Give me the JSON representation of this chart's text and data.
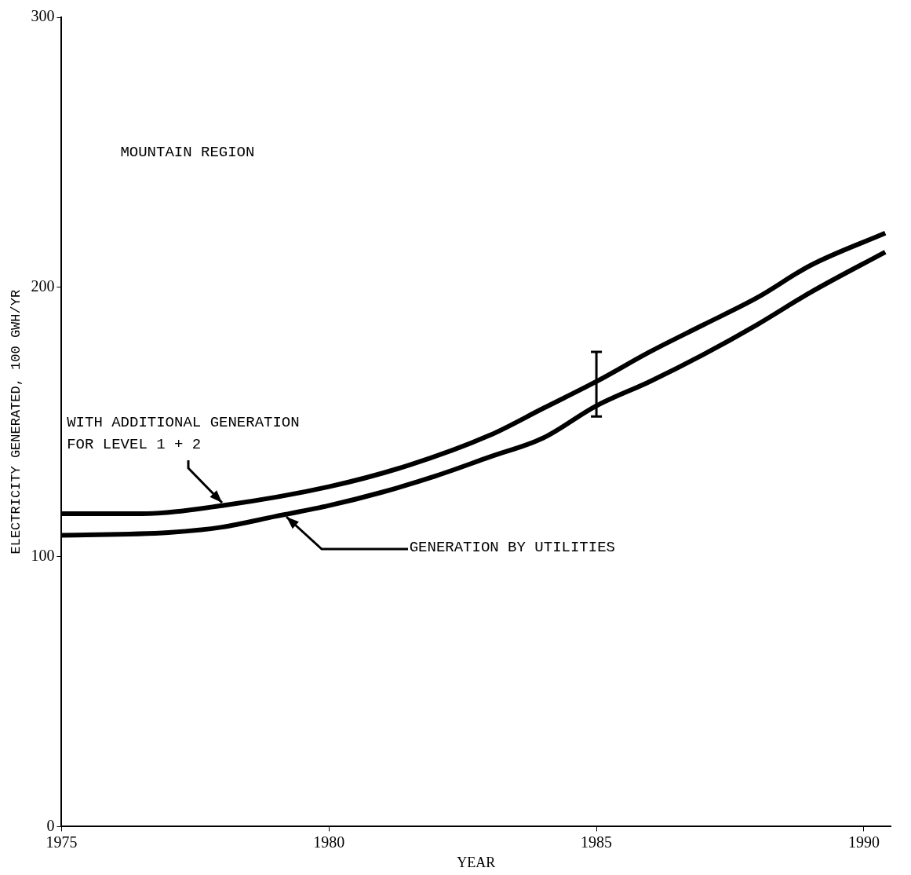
{
  "chart_data": {
    "type": "line",
    "title": "MOUNTAIN REGION",
    "xlabel": "YEAR",
    "ylabel": "ELECTRICITY GENERATED, 100 GWH/YR",
    "xlim": [
      1975,
      1990.5
    ],
    "xticks": [
      1975,
      1980,
      1985,
      1990
    ],
    "ylim": [
      0,
      300
    ],
    "yticks": [
      0,
      100,
      200,
      300
    ],
    "legend": false,
    "marker": "none",
    "line_style": "solid",
    "series": [
      {
        "color": "#000000",
        "x": [
          1975,
          1976.5,
          1978,
          1980,
          1981.5,
          1983,
          1984,
          1985,
          1986,
          1987,
          1988,
          1989,
          1990.4
        ],
        "values": [
          116,
          116,
          119,
          126,
          134,
          145,
          155,
          165,
          176,
          186,
          196,
          208,
          220
        ],
        "errors": [
          null,
          null,
          null,
          null,
          null,
          null,
          null,
          [
            152,
            176
          ],
          null,
          null,
          null,
          null,
          null
        ]
      },
      {
        "color": "#000000",
        "x": [
          1975,
          1977,
          1978,
          1979,
          1980,
          1981,
          1982,
          1983,
          1984,
          1985,
          1986,
          1987,
          1988,
          1989,
          1990.4
        ],
        "values": [
          108,
          109,
          111,
          115,
          119,
          124,
          130,
          137,
          144,
          156,
          165,
          175,
          186,
          198,
          213
        ]
      }
    ],
    "annotations": [
      {
        "text": "WITH ADDITIONAL GENERATION\nFOR LEVEL 1 + 2",
        "x": 1978,
        "y": 119
      },
      {
        "text": "GENERATION BY UTILITIES",
        "x": 1979.2,
        "y": 116
      }
    ]
  }
}
